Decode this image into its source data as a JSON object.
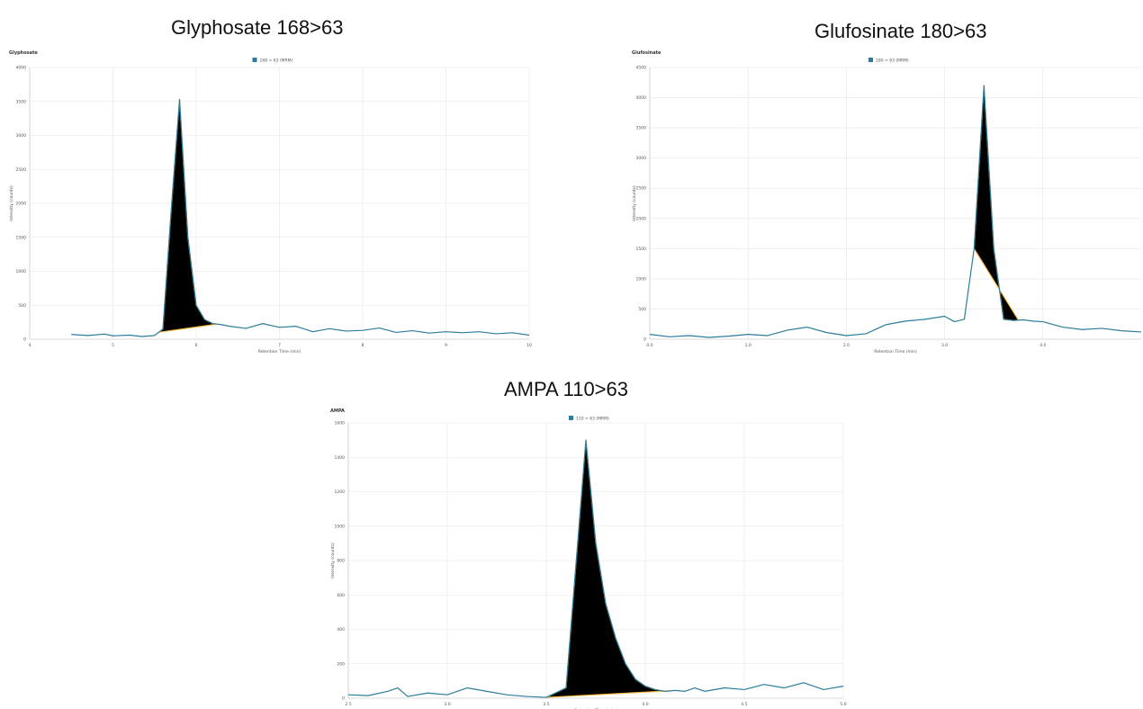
{
  "captions": {
    "glyphosate": "Glyphosate 168>63",
    "glufosinate": "Glufosinate 180>63",
    "ampa": "AMPA 110>63"
  },
  "colors": {
    "trace": "#2e7c9b",
    "peak_fill": "#000000",
    "peak_outline": "#f2b233"
  },
  "chart_data": [
    {
      "type": "line",
      "title": "Glyphosate",
      "legend": "168 > 63 (MRM)",
      "legend_position": "top-center",
      "xlabel": "Retention Time (min)",
      "ylabel": "Intensity (counts)",
      "xlim": [
        4,
        10
      ],
      "ylim": [
        0,
        4000
      ],
      "xticks": [
        4,
        5,
        6,
        7,
        8,
        9,
        10
      ],
      "yticks": [
        0,
        500,
        1000,
        1500,
        2000,
        2500,
        3000,
        3500,
        4000
      ],
      "grid": true,
      "series": [
        {
          "x": [
            4.5,
            4.7,
            4.9,
            5.0,
            5.2,
            5.35,
            5.5,
            5.6,
            5.7,
            5.8,
            5.9,
            6.0,
            6.1,
            6.2,
            6.3,
            6.4,
            6.6,
            6.8,
            7.0,
            7.2,
            7.4,
            7.6,
            7.8,
            8.0,
            8.2,
            8.4,
            8.6,
            8.8,
            9.0,
            9.2,
            9.4,
            9.6,
            9.8,
            10.0
          ],
          "y": [
            70,
            55,
            75,
            50,
            60,
            40,
            55,
            150,
            1900,
            3530,
            1500,
            500,
            290,
            230,
            215,
            190,
            160,
            230,
            175,
            190,
            110,
            155,
            120,
            130,
            165,
            100,
            125,
            90,
            110,
            95,
            110,
            80,
            95,
            60
          ]
        }
      ],
      "peak": {
        "x_start": 5.55,
        "x_end": 6.25
      }
    },
    {
      "type": "line",
      "title": "Glufosinate",
      "legend": "180 > 63 (MRM)",
      "legend_position": "top-center",
      "xlabel": "Retention Time (min)",
      "ylabel": "Intensity (counts)",
      "xlim": [
        0.0,
        5.0
      ],
      "ylim": [
        0,
        4500
      ],
      "xticks": [
        0.0,
        1.0,
        2.0,
        3.0,
        4.0
      ],
      "xtick_labels": [
        "0.0",
        "1.0",
        "2.0",
        "3.0",
        "4.0"
      ],
      "yticks": [
        0,
        500,
        1000,
        1500,
        2000,
        2500,
        3000,
        3500,
        4000,
        4500
      ],
      "grid": true,
      "series": [
        {
          "x": [
            0.0,
            0.2,
            0.4,
            0.6,
            0.8,
            1.0,
            1.2,
            1.4,
            1.6,
            1.8,
            2.0,
            2.2,
            2.4,
            2.6,
            2.8,
            3.0,
            3.1,
            3.2,
            3.3,
            3.4,
            3.5,
            3.6,
            3.7,
            3.8,
            3.9,
            4.0,
            4.2,
            4.4,
            4.6,
            4.8,
            5.0
          ],
          "y": [
            80,
            40,
            60,
            30,
            50,
            80,
            60,
            150,
            200,
            110,
            60,
            90,
            240,
            300,
            330,
            380,
            290,
            330,
            1500,
            4200,
            1500,
            330,
            310,
            320,
            300,
            290,
            200,
            160,
            180,
            140,
            120
          ]
        }
      ],
      "peak": {
        "x_start": 3.3,
        "x_end": 3.75
      }
    },
    {
      "type": "line",
      "title": "AMPA",
      "legend": "110 > 63 (MRM)",
      "legend_position": "top-center",
      "xlabel": "Retention Time (min)",
      "ylabel": "Intensity (counts)",
      "xlim": [
        2.5,
        5.0
      ],
      "ylim": [
        0,
        1600
      ],
      "xticks": [
        2.5,
        3.0,
        3.5,
        4.0,
        4.5,
        5.0
      ],
      "xtick_labels": [
        "2.5",
        "3.0",
        "3.5",
        "4.0",
        "4.5",
        "5.0"
      ],
      "yticks": [
        0,
        200,
        400,
        600,
        800,
        1000,
        1200,
        1400,
        1600
      ],
      "grid": true,
      "series": [
        {
          "x": [
            2.5,
            2.6,
            2.7,
            2.75,
            2.8,
            2.9,
            3.0,
            3.1,
            3.2,
            3.3,
            3.4,
            3.5,
            3.6,
            3.7,
            3.75,
            3.8,
            3.85,
            3.9,
            3.95,
            4.0,
            4.05,
            4.1,
            4.15,
            4.2,
            4.25,
            4.3,
            4.4,
            4.5,
            4.6,
            4.7,
            4.8,
            4.9,
            5.0
          ],
          "y": [
            20,
            15,
            40,
            60,
            10,
            30,
            20,
            60,
            40,
            20,
            10,
            5,
            60,
            1500,
            900,
            550,
            350,
            200,
            110,
            70,
            50,
            40,
            45,
            40,
            60,
            40,
            60,
            50,
            80,
            60,
            90,
            50,
            70
          ]
        }
      ],
      "peak": {
        "x_start": 3.5,
        "x_end": 4.15
      }
    }
  ]
}
